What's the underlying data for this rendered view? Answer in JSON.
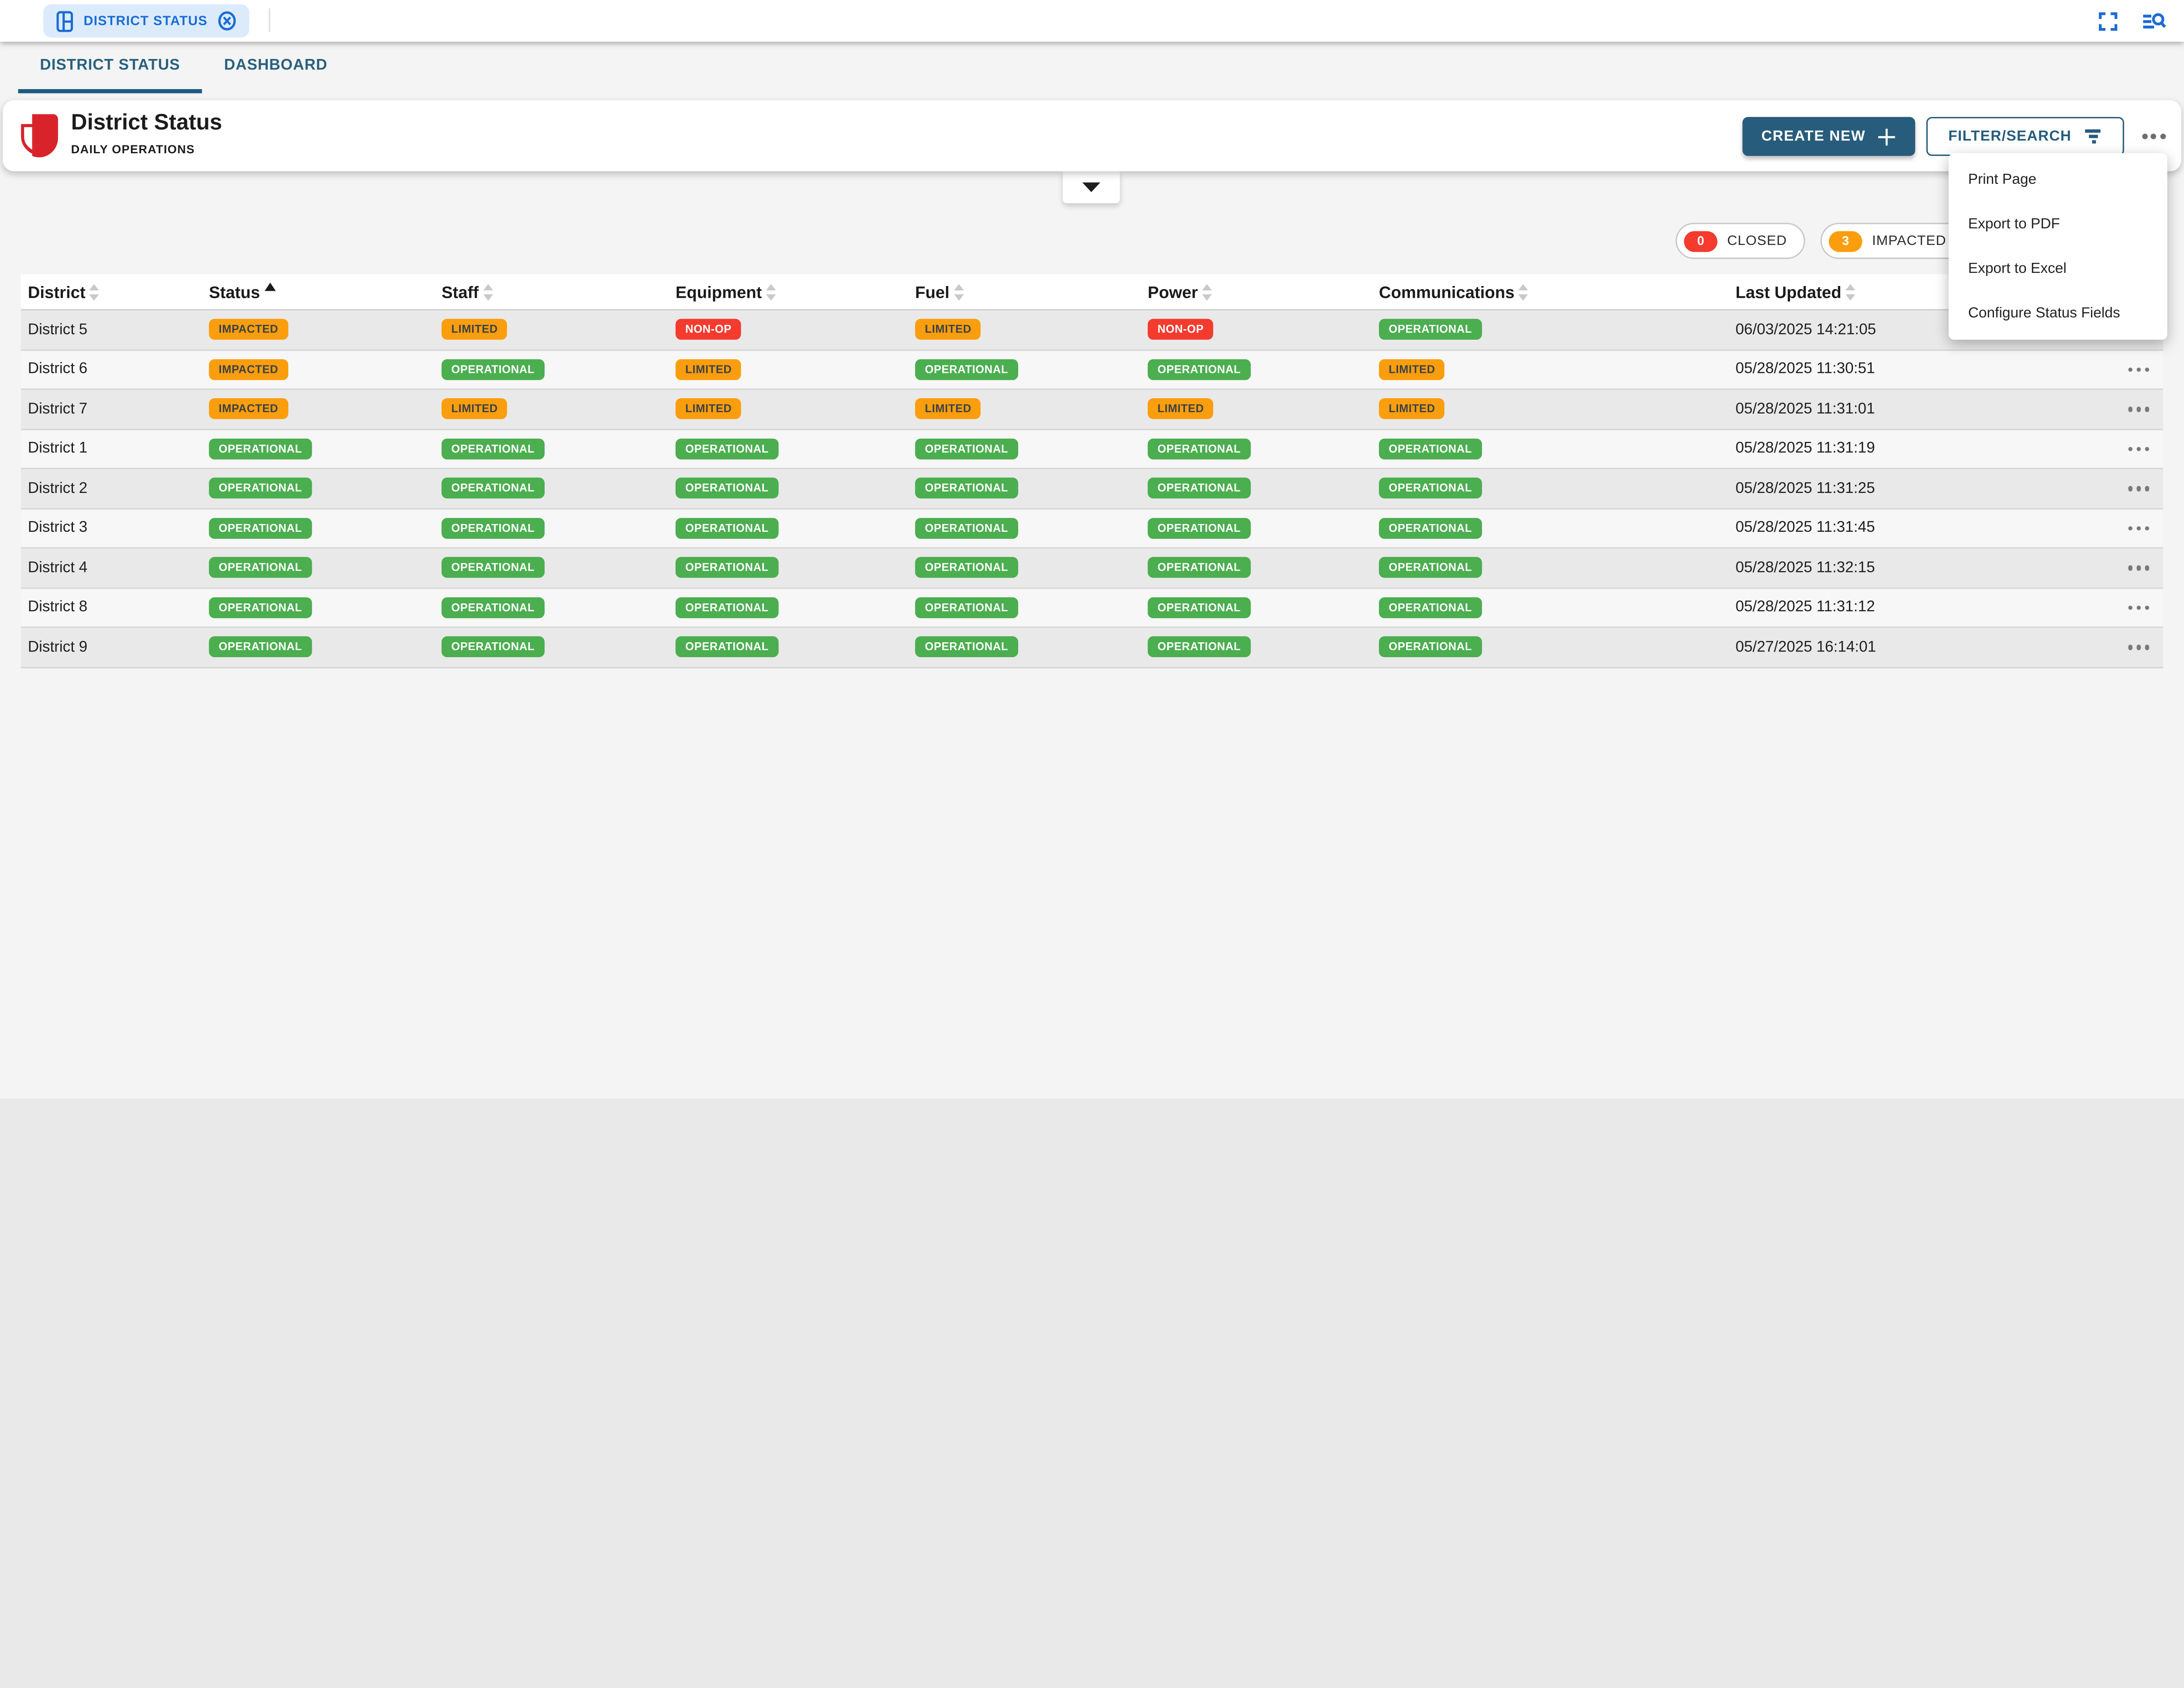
{
  "topbar": {
    "chip": {
      "label": "DISTRICT STATUS"
    }
  },
  "tabs": {
    "district": "DISTRICT STATUS",
    "dashboard": "DASHBOARD"
  },
  "header": {
    "title": "District Status",
    "subtitle": "DAILY OPERATIONS",
    "create_button": "CREATE NEW",
    "filter_button": "FILTER/SEARCH"
  },
  "menu": {
    "items": [
      "Print Page",
      "Export to PDF",
      "Export to Excel",
      "Configure Status Fields"
    ]
  },
  "summary_chips": [
    {
      "count": "0",
      "label": "CLOSED",
      "color": "#f43b2e"
    },
    {
      "count": "3",
      "label": "IMPACTED",
      "color": "#fb9e0d"
    }
  ],
  "table": {
    "columns": [
      {
        "label": "District",
        "sort": "none"
      },
      {
        "label": "Status",
        "sort": "asc"
      },
      {
        "label": "Staff",
        "sort": "none"
      },
      {
        "label": "Equipment",
        "sort": "none"
      },
      {
        "label": "Fuel",
        "sort": "none"
      },
      {
        "label": "Power",
        "sort": "none"
      },
      {
        "label": "Communications",
        "sort": "none"
      },
      {
        "label": "Last Updated",
        "sort": "none"
      }
    ],
    "rows": [
      {
        "district": "District 5",
        "status": "IMPACTED",
        "staff": "LIMITED",
        "equipment": "NON-OP",
        "fuel": "LIMITED",
        "power": "NON-OP",
        "communications": "OPERATIONAL",
        "last_updated": "06/03/2025 14:21:05"
      },
      {
        "district": "District 6",
        "status": "IMPACTED",
        "staff": "OPERATIONAL",
        "equipment": "LIMITED",
        "fuel": "OPERATIONAL",
        "power": "OPERATIONAL",
        "communications": "LIMITED",
        "last_updated": "05/28/2025 11:30:51"
      },
      {
        "district": "District 7",
        "status": "IMPACTED",
        "staff": "LIMITED",
        "equipment": "LIMITED",
        "fuel": "LIMITED",
        "power": "LIMITED",
        "communications": "LIMITED",
        "last_updated": "05/28/2025 11:31:01"
      },
      {
        "district": "District 1",
        "status": "OPERATIONAL",
        "staff": "OPERATIONAL",
        "equipment": "OPERATIONAL",
        "fuel": "OPERATIONAL",
        "power": "OPERATIONAL",
        "communications": "OPERATIONAL",
        "last_updated": "05/28/2025 11:31:19"
      },
      {
        "district": "District 2",
        "status": "OPERATIONAL",
        "staff": "OPERATIONAL",
        "equipment": "OPERATIONAL",
        "fuel": "OPERATIONAL",
        "power": "OPERATIONAL",
        "communications": "OPERATIONAL",
        "last_updated": "05/28/2025 11:31:25"
      },
      {
        "district": "District 3",
        "status": "OPERATIONAL",
        "staff": "OPERATIONAL",
        "equipment": "OPERATIONAL",
        "fuel": "OPERATIONAL",
        "power": "OPERATIONAL",
        "communications": "OPERATIONAL",
        "last_updated": "05/28/2025 11:31:45"
      },
      {
        "district": "District 4",
        "status": "OPERATIONAL",
        "staff": "OPERATIONAL",
        "equipment": "OPERATIONAL",
        "fuel": "OPERATIONAL",
        "power": "OPERATIONAL",
        "communications": "OPERATIONAL",
        "last_updated": "05/28/2025 11:32:15"
      },
      {
        "district": "District 8",
        "status": "OPERATIONAL",
        "staff": "OPERATIONAL",
        "equipment": "OPERATIONAL",
        "fuel": "OPERATIONAL",
        "power": "OPERATIONAL",
        "communications": "OPERATIONAL",
        "last_updated": "05/28/2025 11:31:12"
      },
      {
        "district": "District 9",
        "status": "OPERATIONAL",
        "staff": "OPERATIONAL",
        "equipment": "OPERATIONAL",
        "fuel": "OPERATIONAL",
        "power": "OPERATIONAL",
        "communications": "OPERATIONAL",
        "last_updated": "05/27/2025 16:14:01"
      }
    ],
    "status_styles": {
      "OPERATIONAL": {
        "bg": "#4bae4f",
        "fg": "#ffffff"
      },
      "LIMITED": {
        "bg": "#fb9e0d",
        "fg": "#3b4147"
      },
      "IMPACTED": {
        "bg": "#fb9e0d",
        "fg": "#3b4147"
      },
      "NON-OP": {
        "bg": "#f43b2e",
        "fg": "#ffffff"
      }
    }
  },
  "colors": {
    "accent": "#275c7d",
    "tab_teal": "#2a607f",
    "chip_blue": "#1a6cd3",
    "chip_bg": "#dcebfc",
    "logo_red": "#d8232a",
    "row_odd_bg": "#e9e9e9",
    "row_even_bg": "#f7f7f7"
  }
}
